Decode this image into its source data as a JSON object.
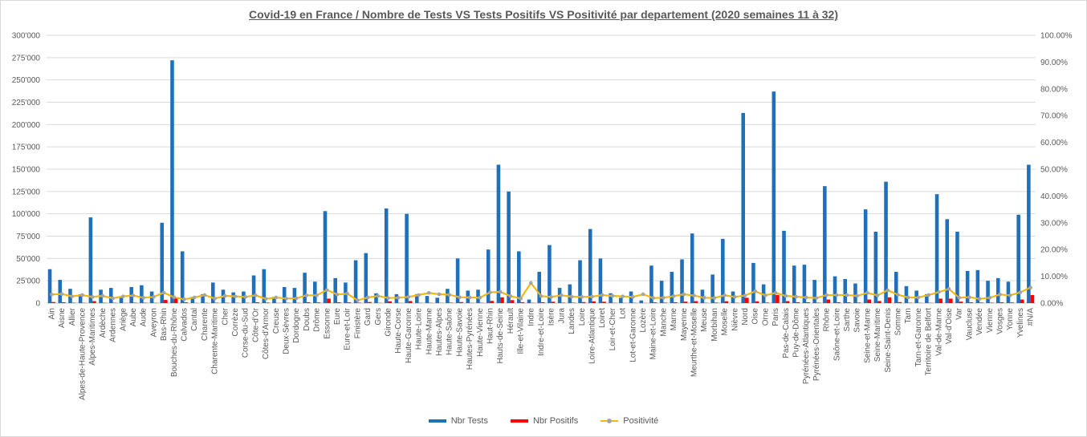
{
  "chart_data": {
    "type": "bar",
    "title": "Covid-19 en France / Nombre de Tests VS Tests Positifs VS Positivité par departement (2020 semaines 11 à 32)",
    "xlabel": "",
    "ylabel": "",
    "ylim": [
      0,
      300000
    ],
    "y2lim": [
      0,
      1
    ],
    "yticks": [
      "0",
      "25'000",
      "50'000",
      "75'000",
      "100'000",
      "125'000",
      "150'000",
      "175'000",
      "200'000",
      "225'000",
      "250'000",
      "275'000",
      "300'000"
    ],
    "y2ticks": [
      "0.00%",
      "10.00%",
      "20.00%",
      "30.00%",
      "40.00%",
      "50.00%",
      "60.00%",
      "70.00%",
      "80.00%",
      "90.00%",
      "100.00%"
    ],
    "grid": true,
    "legend_position": "bottom",
    "categories": [
      "Ain",
      "Aisne",
      "Allier",
      "Alpes-de-Haute-Provence",
      "Alpes-Maritimes",
      "Ardèche",
      "Ardennes",
      "Ariège",
      "Aube",
      "Aude",
      "Aveyron",
      "Bas-Rhin",
      "Bouches-du-Rhône",
      "Calvados",
      "Cantal",
      "Charente",
      "Charente-Maritime",
      "Cher",
      "Corrèze",
      "Corse-du-Sud",
      "Côte-d'Or",
      "Côtes-d'Armor",
      "Creuse",
      "Deux-Sèvres",
      "Dordogne",
      "Doubs",
      "Drôme",
      "Essonne",
      "Eure",
      "Eure-et-Loir",
      "Finistère",
      "Gard",
      "Gers",
      "Gironde",
      "Haute-Corse",
      "Haute-Garonne",
      "Haute-Loire",
      "Haute-Marne",
      "Hautes-Alpes",
      "Haute-Saône",
      "Haute-Savoie",
      "Hautes-Pyrénées",
      "Haute-Vienne",
      "Haut-Rhin",
      "Hauts-de-Seine",
      "Hérault",
      "Ille-et-Vilaine",
      "Indre",
      "Indre-et-Loire",
      "Isère",
      "Jura",
      "Landes",
      "Loire",
      "Loire-Atlantique",
      "Loiret",
      "Loir-et-Cher",
      "Lot",
      "Lot-et-Garonne",
      "Lozère",
      "Maine-et-Loire",
      "Manche",
      "Marne",
      "Mayenne",
      "Meurthe-et-Moselle",
      "Meuse",
      "Morbihan",
      "Moselle",
      "Nièvre",
      "Nord",
      "Oise",
      "Orne",
      "Paris",
      "Pas-de-Calais",
      "Puy-de-Dôme",
      "Pyrénées-Atlantiques",
      "Pyrénées-Orientales",
      "Rhône",
      "Saône-et-Loire",
      "Sarthe",
      "Savoie",
      "Seine-et-Marne",
      "Seine-Maritime",
      "Seine-Saint-Denis",
      "Somme",
      "Tarn",
      "Tarn-et-Garonne",
      "Territoire de Belfort",
      "Val-de-Marne",
      "Val-d'Oise",
      "Var",
      "Vaucluse",
      "Vendée",
      "Vienne",
      "Vosges",
      "Yonne",
      "Yvelines",
      "#N/A"
    ],
    "series": [
      {
        "name": "Nbr Tests",
        "color": "#1f70b8",
        "axis": "left",
        "values": [
          38000,
          26000,
          16000,
          10000,
          96000,
          15000,
          17000,
          6000,
          18000,
          20000,
          13000,
          90000,
          272000,
          58000,
          7000,
          10000,
          23000,
          15000,
          12000,
          13000,
          31000,
          38000,
          7000,
          18000,
          17000,
          34000,
          24000,
          103000,
          28000,
          23000,
          48000,
          56000,
          11000,
          106000,
          10000,
          100000,
          10000,
          8000,
          6000,
          16000,
          50000,
          14000,
          15000,
          60000,
          155000,
          125000,
          58000,
          4000,
          35000,
          65000,
          17000,
          21000,
          48000,
          83000,
          50000,
          11000,
          6000,
          13000,
          3000,
          42000,
          25000,
          35000,
          49000,
          78000,
          15000,
          32000,
          72000,
          13000,
          213000,
          45000,
          21000,
          237000,
          81000,
          42000,
          43000,
          26000,
          131000,
          30000,
          27000,
          22000,
          105000,
          80000,
          136000,
          35000,
          19000,
          14000,
          10000,
          122000,
          94000,
          80000,
          36000,
          37000,
          25000,
          28000,
          24000,
          99000,
          155000
        ]
      },
      {
        "name": "Nbr Positifs",
        "color": "#ff0000",
        "axis": "left",
        "values": [
          1200,
          900,
          400,
          300,
          2200,
          400,
          300,
          150,
          500,
          400,
          300,
          3500,
          6000,
          800,
          150,
          300,
          400,
          400,
          300,
          300,
          900,
          600,
          150,
          300,
          300,
          1000,
          700,
          5000,
          900,
          800,
          500,
          1200,
          300,
          2000,
          200,
          2300,
          300,
          300,
          200,
          500,
          1100,
          300,
          300,
          2400,
          6500,
          3300,
          1000,
          300,
          900,
          1500,
          500,
          500,
          1100,
          2000,
          1500,
          300,
          150,
          300,
          100,
          800,
          500,
          900,
          1600,
          2200,
          300,
          600,
          2100,
          300,
          6000,
          2000,
          600,
          9000,
          2200,
          1000,
          900,
          500,
          4000,
          900,
          800,
          600,
          4000,
          2300,
          6500,
          1100,
          400,
          300,
          300,
          5000,
          5000,
          1600,
          800,
          600,
          500,
          900,
          700,
          4000,
          9000
        ]
      },
      {
        "name": "Positivité",
        "color": "#f2b80f",
        "marker_color": "#a5a5a5",
        "axis": "right",
        "values": [
          0.032,
          0.034,
          0.025,
          0.03,
          0.023,
          0.027,
          0.018,
          0.025,
          0.028,
          0.02,
          0.023,
          0.039,
          0.022,
          0.014,
          0.021,
          0.03,
          0.017,
          0.027,
          0.025,
          0.023,
          0.029,
          0.016,
          0.021,
          0.017,
          0.018,
          0.029,
          0.029,
          0.049,
          0.032,
          0.035,
          0.01,
          0.021,
          0.027,
          0.019,
          0.02,
          0.023,
          0.03,
          0.038,
          0.033,
          0.031,
          0.022,
          0.021,
          0.02,
          0.04,
          0.042,
          0.026,
          0.017,
          0.075,
          0.026,
          0.023,
          0.029,
          0.024,
          0.023,
          0.024,
          0.03,
          0.027,
          0.025,
          0.023,
          0.033,
          0.019,
          0.02,
          0.026,
          0.033,
          0.028,
          0.02,
          0.019,
          0.029,
          0.023,
          0.028,
          0.044,
          0.029,
          0.038,
          0.027,
          0.024,
          0.021,
          0.019,
          0.03,
          0.03,
          0.03,
          0.027,
          0.038,
          0.029,
          0.048,
          0.031,
          0.021,
          0.021,
          0.03,
          0.041,
          0.053,
          0.02,
          0.022,
          0.016,
          0.02,
          0.032,
          0.029,
          0.04,
          0.058
        ]
      }
    ]
  }
}
